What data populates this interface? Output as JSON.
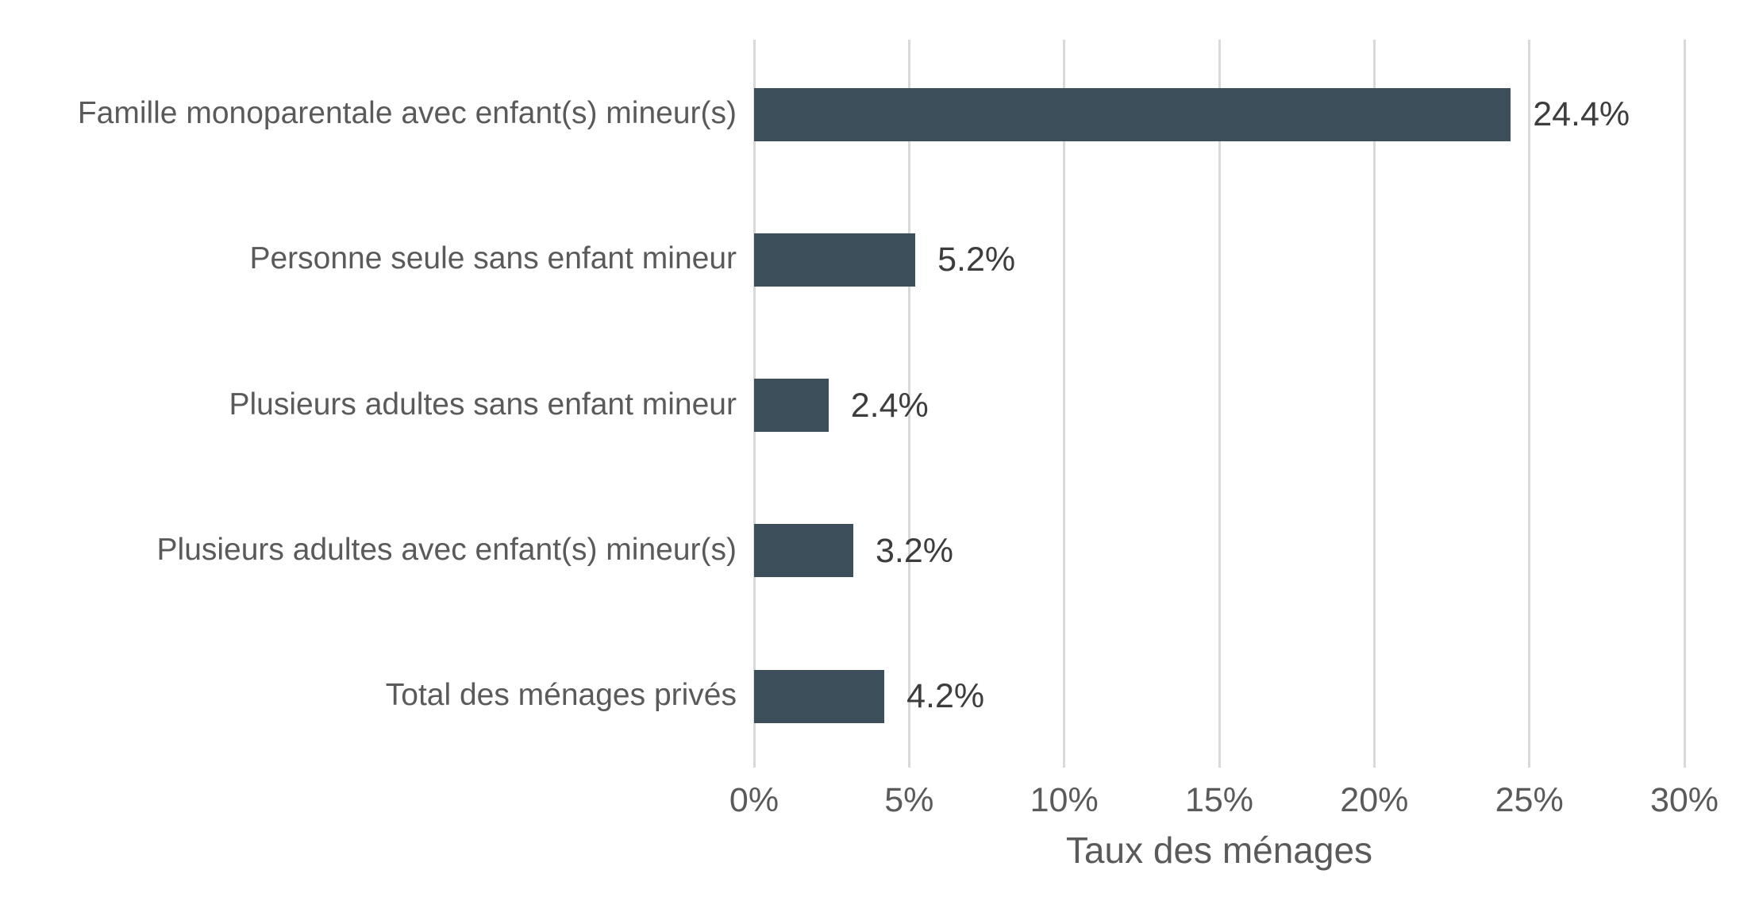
{
  "chart_data": {
    "type": "bar",
    "orientation": "horizontal",
    "title": "",
    "categories": [
      "Famille monoparentale avec enfant(s) mineur(s)",
      "Personne seule sans enfant mineur",
      "Plusieurs adultes sans enfant mineur",
      "Plusieurs adultes avec enfant(s) mineur(s)",
      "Total des ménages privés"
    ],
    "values": [
      24.4,
      5.2,
      2.4,
      3.2,
      4.2
    ],
    "value_labels": [
      "24.4%",
      "5.2%",
      "2.4%",
      "3.2%",
      "4.2%"
    ],
    "xlabel": "Taux des ménages",
    "ylabel": "",
    "xlim": [
      0,
      30
    ],
    "xticks": [
      0,
      5,
      10,
      15,
      20,
      25,
      30
    ],
    "xtick_labels": [
      "0%",
      "5%",
      "10%",
      "15%",
      "20%",
      "25%",
      "30%"
    ],
    "grid": "vertical-only",
    "legend": "none"
  },
  "colors": {
    "bar": "#3c4f5a",
    "gridline": "#d9d9d9",
    "category_text": "#5a5a5a",
    "value_text": "#3d3d3d",
    "axis_text": "#5a5a5a",
    "background": "#ffffff"
  }
}
